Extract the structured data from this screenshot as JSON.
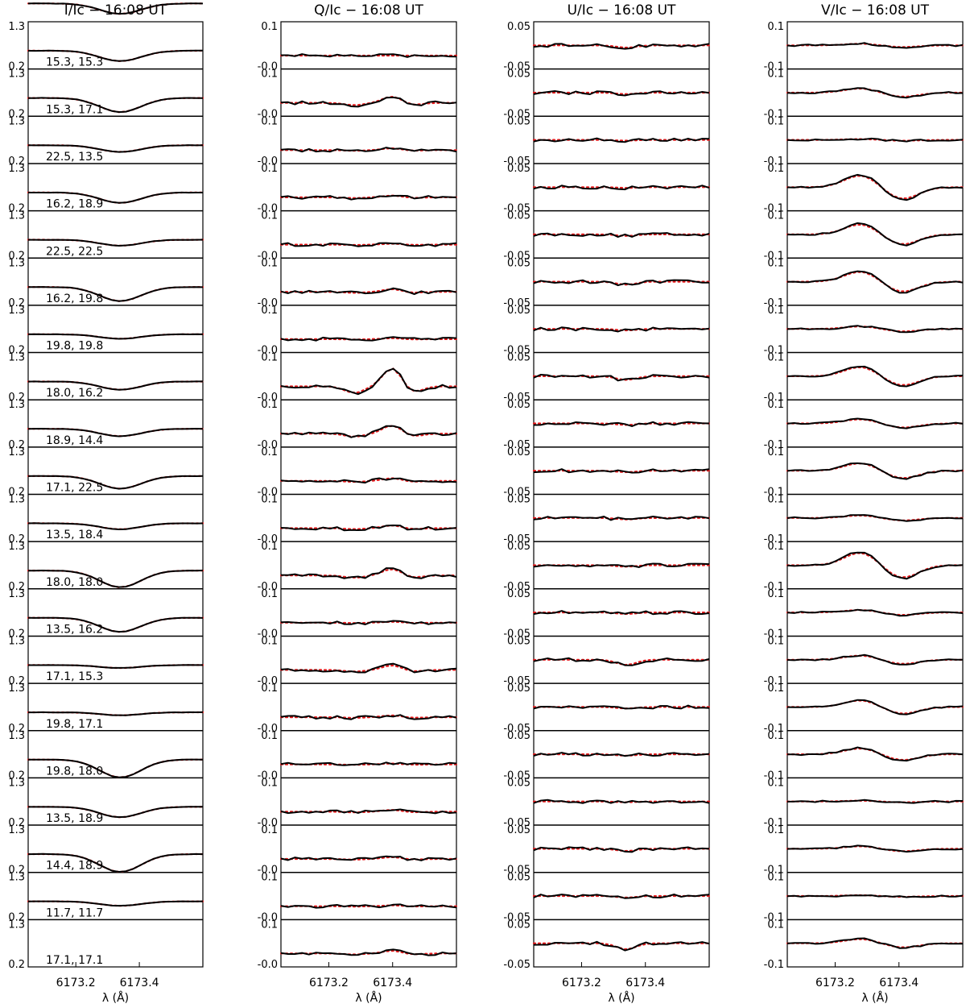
{
  "figure": {
    "xlabel": "λ (Å)",
    "x_tick_labels": [
      "6173.2",
      "6173.4"
    ],
    "colors": {
      "observed": "#000000",
      "fit": "#e41a1c"
    }
  },
  "chart_data": [
    {
      "type": "line",
      "title": "I/Ic − 16:08 UT",
      "ylim": [
        0.2,
        1.3
      ],
      "y_tick_labels": [
        "1.3",
        "0.2"
      ],
      "xlabel": "λ (Å)",
      "x_ticks": [
        6173.2,
        6173.4
      ],
      "series": [
        {
          "kind": "observed",
          "style": "solid black"
        },
        {
          "kind": "fit",
          "style": "dotted red"
        }
      ],
      "panel_labels": [
        "15.3, 15.3",
        "15.3, 17.1",
        "22.5, 13.5",
        "16.2, 18.9",
        "22.5, 22.5",
        "16.2, 19.8",
        "19.8, 19.8",
        "18.0, 16.2",
        "18.9, 14.4",
        "17.1, 22.5",
        "13.5, 18.4",
        "18.0, 18.0",
        "13.5, 16.2",
        "17.1, 15.3",
        "19.8, 17.1",
        "19.8, 18.0",
        "13.5, 18.9",
        "14.4, 18.9",
        "11.7, 11.7",
        "17.1, 17.1"
      ]
    },
    {
      "type": "line",
      "title": "Q/Ic − 16:08 UT",
      "ylim": [
        -0.05,
        0.15
      ],
      "y_tick_labels": [
        "0.1",
        "-0.0"
      ],
      "xlabel": "λ (Å)",
      "x_ticks": [
        6173.2,
        6173.4
      ],
      "series": [
        {
          "kind": "observed",
          "style": "solid black"
        },
        {
          "kind": "fit",
          "style": "dotted red"
        }
      ]
    },
    {
      "type": "line",
      "title": "U/Ic − 16:08 UT",
      "ylim": [
        -0.05,
        0.05
      ],
      "y_tick_labels": [
        "0.05",
        "-0.05"
      ],
      "xlabel": "λ (Å)",
      "x_ticks": [
        6173.2,
        6173.4
      ],
      "series": [
        {
          "kind": "observed",
          "style": "solid black"
        },
        {
          "kind": "fit",
          "style": "dotted red"
        }
      ]
    },
    {
      "type": "line",
      "title": "V/Ic − 16:08 UT",
      "ylim": [
        -0.1,
        0.1
      ],
      "y_tick_labels": [
        "0.1",
        "-0.1"
      ],
      "xlabel": "λ (Å)",
      "x_ticks": [
        6173.2,
        6173.4
      ],
      "series": [
        {
          "kind": "observed",
          "style": "solid black"
        },
        {
          "kind": "fit",
          "style": "dotted red"
        }
      ]
    }
  ]
}
